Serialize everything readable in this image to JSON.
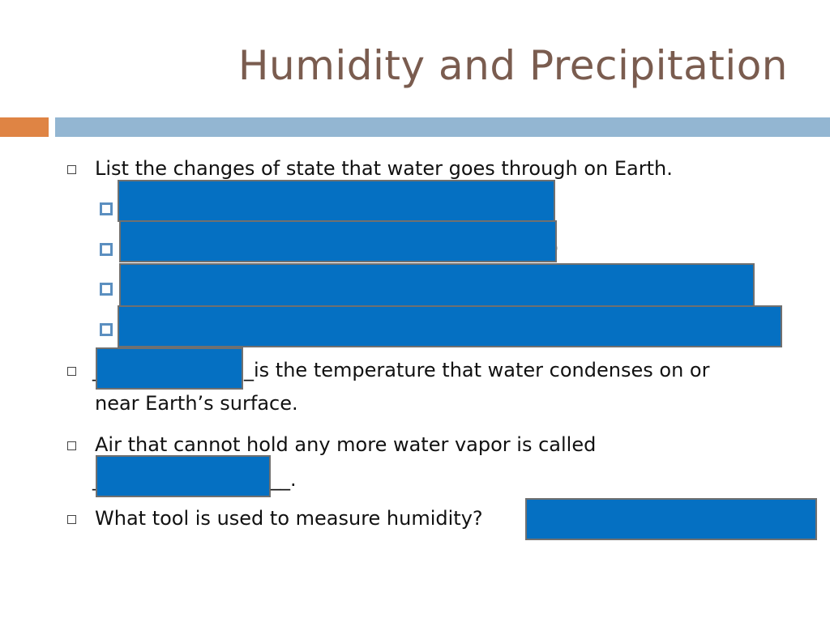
{
  "slide": {
    "title": "Humidity and Precipitation",
    "items": [
      {
        "text": "List the changes of state that water goes through on Earth."
      },
      {
        "prefix": "_",
        "text": "_is the temperature that water condenses on or",
        "text2": "near Earth’s surface."
      },
      {
        "text": "Air that cannot hold any more water vapor is called",
        "text2_prefix": "_",
        "text2": "__."
      },
      {
        "text": "What tool is used to measure humidity?"
      }
    ],
    "peek_char": ")"
  },
  "colors": {
    "title": "#7a5c4f",
    "accent_orange": "#df8444",
    "accent_blue": "#93b6d2",
    "redaction": "#0570c2"
  }
}
